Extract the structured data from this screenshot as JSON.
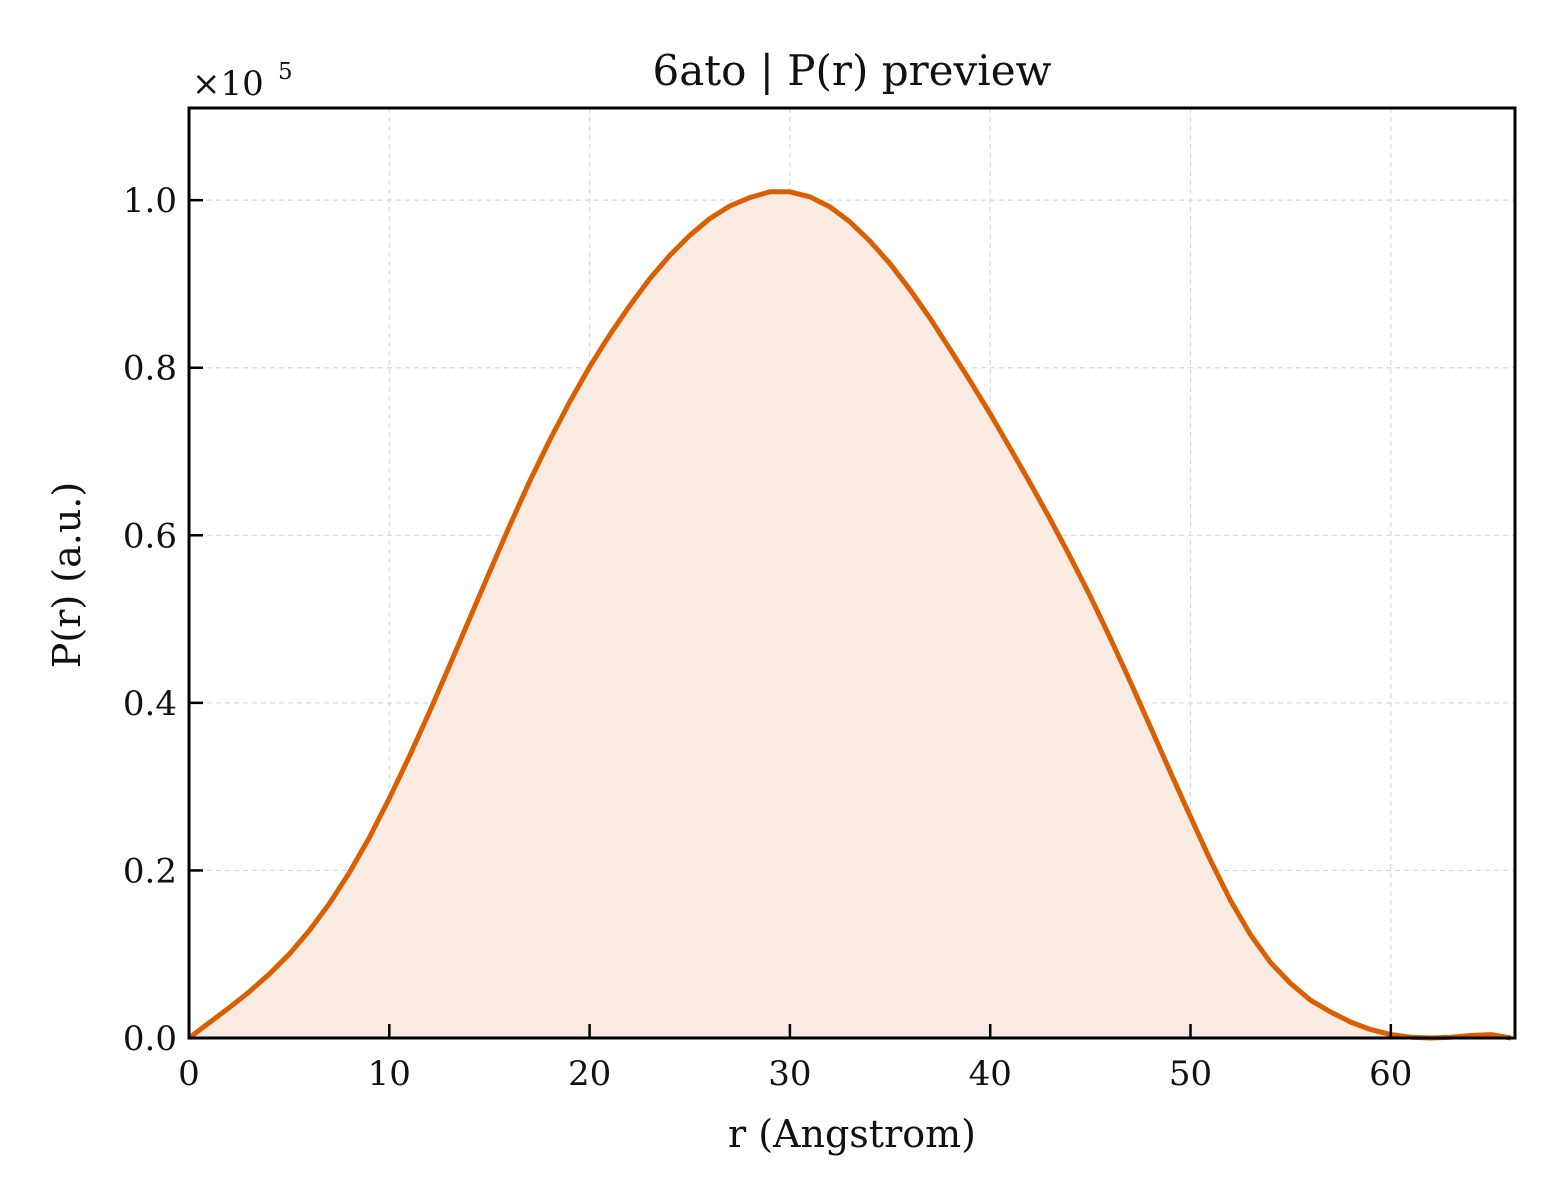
{
  "chart_data": {
    "type": "area",
    "title": "6ato | P(r) preview",
    "xlabel": "r (Angstrom)",
    "ylabel": "P(r) (a.u.)",
    "y_scale_prefix": "×10",
    "y_scale_exponent": "5",
    "xlim": [
      0,
      66.2
    ],
    "ylim": [
      0,
      1.11
    ],
    "x_ticks": [
      0,
      10,
      20,
      30,
      40,
      50,
      60
    ],
    "x_tick_labels": [
      "0",
      "10",
      "20",
      "30",
      "40",
      "50",
      "60"
    ],
    "y_ticks": [
      0.0,
      0.2,
      0.4,
      0.6,
      0.8,
      1.0
    ],
    "y_tick_labels": [
      "0.0",
      "0.2",
      "0.4",
      "0.6",
      "0.8",
      "1.0"
    ],
    "grid": true,
    "colors": {
      "line": "#d95f02",
      "fill": "#f9ebe1",
      "grid": "#d9d9d9",
      "axes": "#000000"
    },
    "series": [
      {
        "x": [
          0,
          1,
          2,
          3,
          4,
          5,
          6,
          7,
          8,
          9,
          10,
          11,
          12,
          13,
          14,
          15,
          16,
          17,
          18,
          19,
          20,
          21,
          22,
          23,
          24,
          25,
          26,
          27,
          28,
          29,
          30,
          31,
          32,
          33,
          34,
          35,
          36,
          37,
          38,
          39,
          40,
          41,
          42,
          43,
          44,
          45,
          46,
          47,
          48,
          49,
          50,
          51,
          52,
          53,
          54,
          55,
          56,
          57,
          58,
          59,
          60,
          61,
          62,
          63,
          64,
          65,
          66
        ],
        "y": [
          0.0,
          0.018,
          0.036,
          0.055,
          0.076,
          0.1,
          0.128,
          0.16,
          0.197,
          0.239,
          0.286,
          0.336,
          0.389,
          0.444,
          0.5,
          0.556,
          0.611,
          0.664,
          0.713,
          0.759,
          0.801,
          0.839,
          0.874,
          0.906,
          0.934,
          0.958,
          0.978,
          0.993,
          1.003,
          1.01,
          1.01,
          1.004,
          0.992,
          0.974,
          0.951,
          0.924,
          0.893,
          0.859,
          0.822,
          0.784,
          0.745,
          0.704,
          0.662,
          0.619,
          0.574,
          0.527,
          0.477,
          0.425,
          0.371,
          0.317,
          0.264,
          0.212,
          0.164,
          0.123,
          0.09,
          0.065,
          0.045,
          0.031,
          0.019,
          0.01,
          0.004,
          0.001,
          0.0,
          0.001,
          0.003,
          0.004,
          0.0
        ]
      }
    ]
  }
}
